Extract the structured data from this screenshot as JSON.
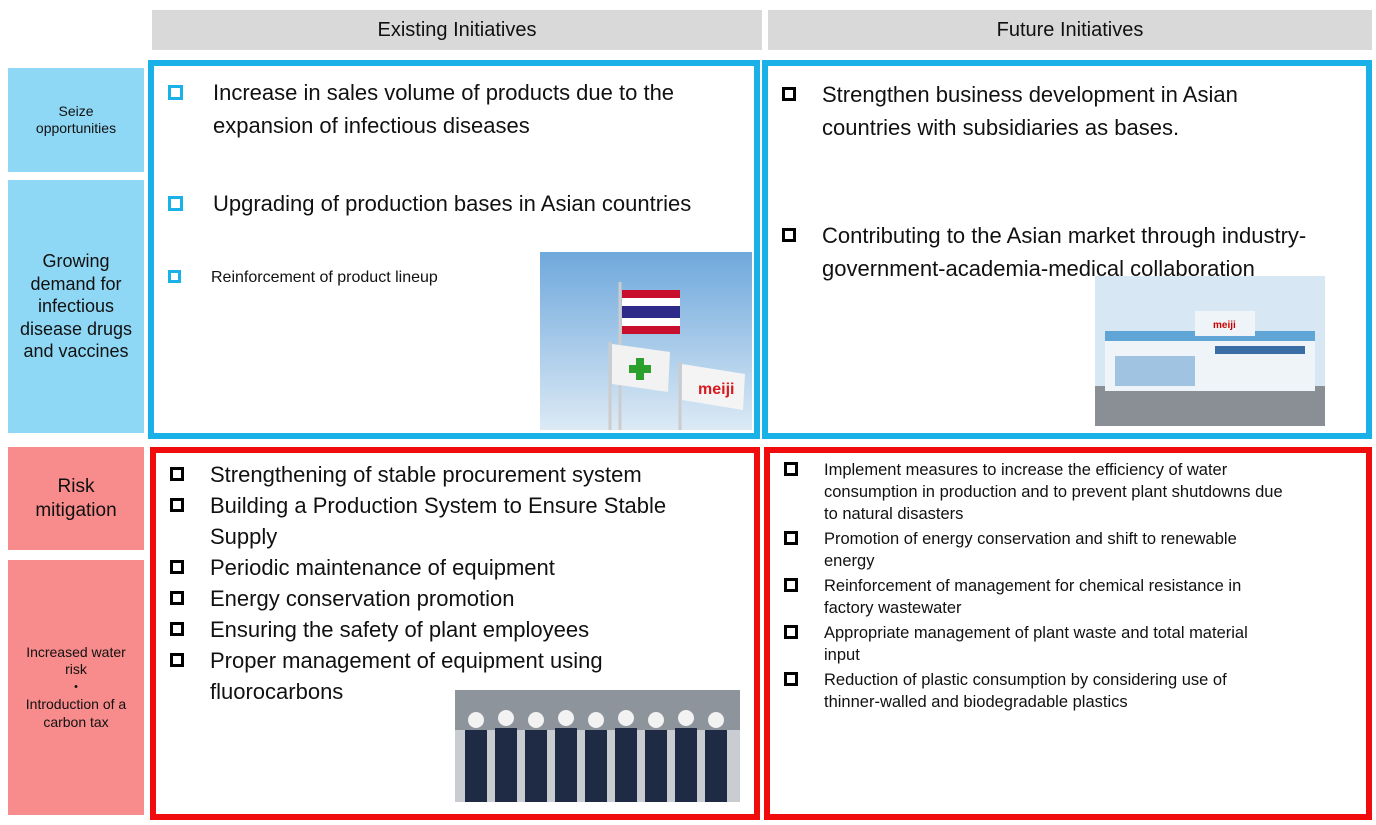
{
  "headers": [
    "Existing Initiatives",
    "Future Initiatives"
  ],
  "rows": [
    {
      "labels": [
        [
          "Seize opportunities"
        ],
        [
          "Growing demand for infectious disease drugs and vaccines"
        ]
      ],
      "existing": [
        "Increase in sales volume of products due to the expansion of infectious diseases",
        "Upgrading of production bases in Asian countries",
        "Reinforcement of product lineup"
      ],
      "future": [
        "Strengthen business development in Asian countries with subsidiaries as bases.",
        "Contributing to the Asian market through industry-government-academia-medical collaboration"
      ]
    },
    {
      "labels": [
        [
          "Risk mitigation"
        ],
        [
          "Increased water risk",
          "・",
          "Introduction of a carbon tax"
        ]
      ],
      "existing": [
        "Strengthening of stable procurement system",
        "Building a Production System to Ensure Stable Supply",
        "Periodic maintenance of equipment",
        "Energy conservation promotion",
        "Ensuring the safety of plant employees",
        "Proper management of equipment using fluorocarbons"
      ],
      "future": [
        "Implement measures to increase the efficiency of water consumption in production and to prevent plant shutdowns due to natural disasters",
        "Promotion of energy conservation and shift to renewable energy",
        "Reinforcement of management for chemical resistance in factory wastewater",
        "Appropriate management of plant waste and total material input",
        "Reduction of plastic consumption by considering use of thinner-walled and biodegradable plastics"
      ]
    }
  ]
}
